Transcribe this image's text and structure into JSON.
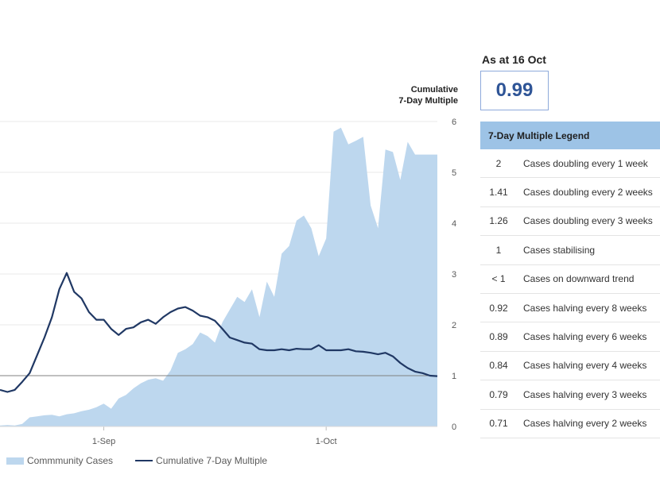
{
  "header": {
    "as_at_label": "As at 16 Oct",
    "as_at_value": "0.99"
  },
  "legend_table": {
    "title": "7-Day Multiple Legend",
    "rows": [
      {
        "value": "2",
        "description": "Cases doubling every 1 week"
      },
      {
        "value": "1.41",
        "description": "Cases doubling every 2 weeks"
      },
      {
        "value": "1.26",
        "description": "Cases doubling every 3 weeks"
      },
      {
        "value": "1",
        "description": "Cases stabilising"
      },
      {
        "value": "< 1",
        "description": "Cases on downward trend"
      },
      {
        "value": "0.92",
        "description": "Cases halving every 8 weeks"
      },
      {
        "value": "0.89",
        "description": "Cases halving every 6 weeks"
      },
      {
        "value": "0.84",
        "description": "Cases halving every 4 weeks"
      },
      {
        "value": "0.79",
        "description": "Cases halving every 3 weeks"
      },
      {
        "value": "0.71",
        "description": "Cases halving every 2 weeks"
      }
    ]
  },
  "colors": {
    "area": "#bdd7ee",
    "line": "#203864",
    "reference_line": "#808080",
    "gridline": "#e8e8e8",
    "value_text": "#2f5597",
    "legend_header": "#9dc3e6"
  },
  "chart_data": {
    "type": "area",
    "title": "",
    "xlabel": "",
    "ylabel_right": "Cumulative\n7-Day Multiple",
    "x_ticks": [
      "1-Sep",
      "1-Oct"
    ],
    "x_start": "2021-08-18",
    "x_end": "2021-10-16",
    "y_right_ticks": [
      "0",
      "1",
      "2",
      "3",
      "4",
      "5",
      "6"
    ],
    "y_right_range": [
      0,
      6
    ],
    "reference_line_y": 1,
    "grid": true,
    "legend": {
      "position": "bottom-left",
      "items": [
        "Commmunity Cases",
        "Cumulative 7-Day Multiple"
      ]
    },
    "x": [
      "2021-08-18",
      "2021-08-19",
      "2021-08-20",
      "2021-08-21",
      "2021-08-22",
      "2021-08-23",
      "2021-08-24",
      "2021-08-25",
      "2021-08-26",
      "2021-08-27",
      "2021-08-28",
      "2021-08-29",
      "2021-08-30",
      "2021-08-31",
      "2021-09-01",
      "2021-09-02",
      "2021-09-03",
      "2021-09-04",
      "2021-09-05",
      "2021-09-06",
      "2021-09-07",
      "2021-09-08",
      "2021-09-09",
      "2021-09-10",
      "2021-09-11",
      "2021-09-12",
      "2021-09-13",
      "2021-09-14",
      "2021-09-15",
      "2021-09-16",
      "2021-09-17",
      "2021-09-18",
      "2021-09-19",
      "2021-09-20",
      "2021-09-21",
      "2021-09-22",
      "2021-09-23",
      "2021-09-24",
      "2021-09-25",
      "2021-09-26",
      "2021-09-27",
      "2021-09-28",
      "2021-09-29",
      "2021-09-30",
      "2021-10-01",
      "2021-10-02",
      "2021-10-03",
      "2021-10-04",
      "2021-10-05",
      "2021-10-06",
      "2021-10-07",
      "2021-10-08",
      "2021-10-09",
      "2021-10-10",
      "2021-10-11",
      "2021-10-12",
      "2021-10-13",
      "2021-10-14",
      "2021-10-15",
      "2021-10-16"
    ],
    "series": [
      {
        "name": "Commmunity Cases",
        "type": "area",
        "axis": "right-scale",
        "values": [
          0.02,
          0.03,
          0.02,
          0.05,
          0.18,
          0.2,
          0.22,
          0.23,
          0.2,
          0.24,
          0.26,
          0.3,
          0.33,
          0.38,
          0.45,
          0.35,
          0.55,
          0.62,
          0.75,
          0.85,
          0.92,
          0.95,
          0.9,
          1.1,
          1.45,
          1.52,
          1.62,
          1.85,
          1.78,
          1.65,
          2.05,
          2.3,
          2.55,
          2.45,
          2.7,
          2.15,
          2.85,
          2.55,
          3.4,
          3.55,
          4.05,
          4.15,
          3.9,
          3.35,
          3.7,
          5.8,
          5.88,
          5.55,
          5.62,
          5.7,
          4.35,
          3.9,
          5.45,
          5.4,
          4.85,
          5.6,
          5.35,
          5.35,
          5.35,
          5.35
        ]
      },
      {
        "name": "Cumulative 7-Day Multiple",
        "type": "line",
        "axis": "right",
        "values": [
          0.72,
          0.68,
          0.72,
          0.88,
          1.05,
          1.4,
          1.75,
          2.15,
          2.7,
          3.02,
          2.65,
          2.52,
          2.25,
          2.1,
          2.1,
          1.92,
          1.8,
          1.92,
          1.95,
          2.05,
          2.1,
          2.02,
          2.15,
          2.25,
          2.32,
          2.35,
          2.28,
          2.18,
          2.15,
          2.08,
          1.92,
          1.75,
          1.7,
          1.65,
          1.63,
          1.52,
          1.5,
          1.5,
          1.52,
          1.5,
          1.53,
          1.52,
          1.52,
          1.6,
          1.5,
          1.5,
          1.5,
          1.52,
          1.48,
          1.47,
          1.45,
          1.42,
          1.45,
          1.38,
          1.25,
          1.15,
          1.08,
          1.05,
          1.0,
          0.99
        ]
      }
    ]
  }
}
